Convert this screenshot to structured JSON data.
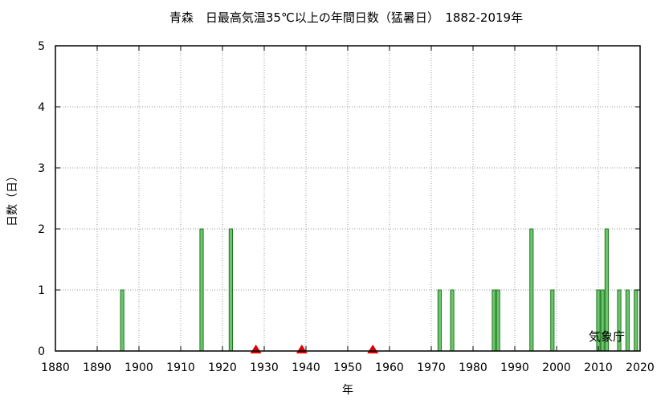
{
  "chart_data": {
    "type": "bar",
    "title": "青森　日最高気温35℃以上の年間日数（猛暑日）　1882-2019年",
    "xlabel": "年",
    "ylabel": "日数（日）",
    "xlim": [
      1880,
      2020
    ],
    "ylim": [
      0,
      5
    ],
    "x_ticks": [
      1880,
      1890,
      1900,
      1910,
      1920,
      1930,
      1940,
      1950,
      1960,
      1970,
      1980,
      1990,
      2000,
      2010,
      2020
    ],
    "y_ticks": [
      0,
      1,
      2,
      3,
      4,
      5
    ],
    "grid": true,
    "bar_color": "#6cc46c",
    "bar_edge_color": "#1f7a1f",
    "marker_color": "#dd0000",
    "bars": [
      {
        "year": 1896,
        "value": 1
      },
      {
        "year": 1915,
        "value": 2
      },
      {
        "year": 1922,
        "value": 2
      },
      {
        "year": 1972,
        "value": 1
      },
      {
        "year": 1975,
        "value": 1
      },
      {
        "year": 1985,
        "value": 1
      },
      {
        "year": 1986,
        "value": 1
      },
      {
        "year": 1994,
        "value": 2
      },
      {
        "year": 1999,
        "value": 1
      },
      {
        "year": 2010,
        "value": 1
      },
      {
        "year": 2011,
        "value": 1
      },
      {
        "year": 2012,
        "value": 2
      },
      {
        "year": 2015,
        "value": 1
      },
      {
        "year": 2017,
        "value": 1
      },
      {
        "year": 2019,
        "value": 1
      }
    ],
    "markers": [
      {
        "year": 1928,
        "value": 0
      },
      {
        "year": 1939,
        "value": 0
      },
      {
        "year": 1956,
        "value": 0
      }
    ],
    "source_label": "気象庁"
  }
}
